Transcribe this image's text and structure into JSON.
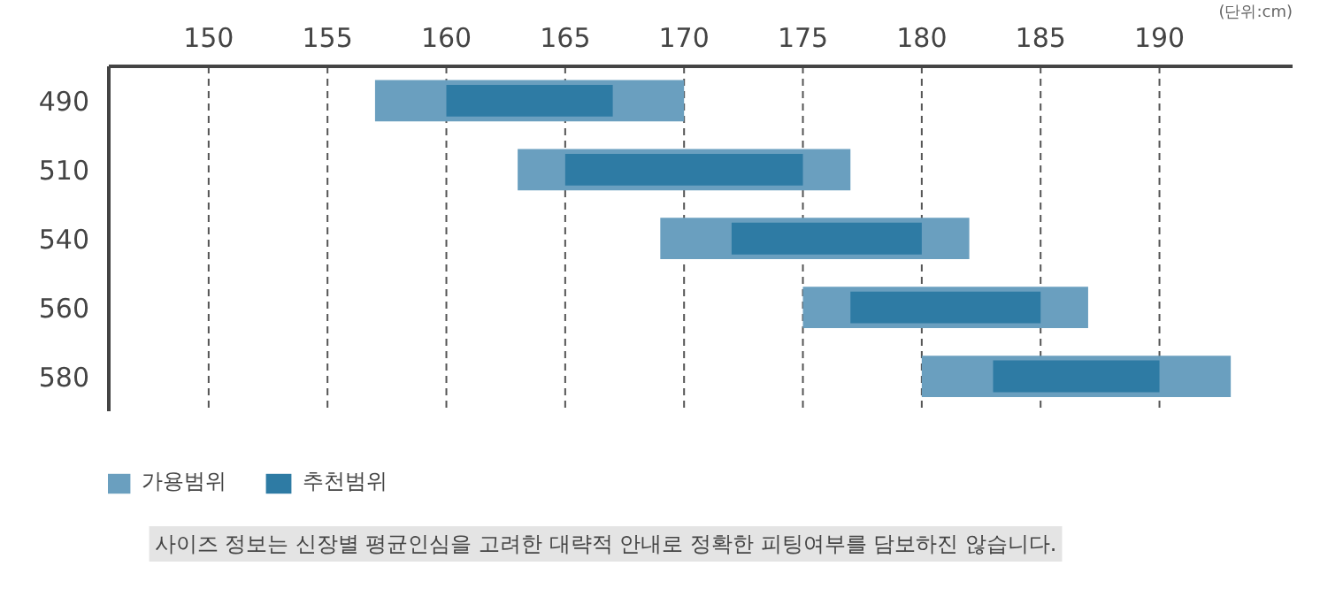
{
  "chart_data": {
    "type": "bar",
    "orientation": "horizontal",
    "xlabel": "(단위:cm)",
    "categories": [
      "490",
      "510",
      "540",
      "560",
      "580"
    ],
    "series": [
      {
        "name": "가용범위",
        "color": "#6a9fbf",
        "base": [
          157,
          163,
          169,
          175,
          180
        ],
        "values": [
          13,
          14,
          13,
          12,
          13
        ]
      },
      {
        "name": "추천범위",
        "color": "#2e7ba4",
        "base": [
          160,
          165,
          172,
          177,
          183
        ],
        "values": [
          7,
          10,
          8,
          8,
          7
        ]
      }
    ],
    "xlim": [
      145.8,
      195.6
    ],
    "xticks": [
      150,
      155,
      160,
      165,
      170,
      175,
      180,
      185,
      190
    ],
    "grid": "x",
    "legend": "bottom left",
    "annotations": [
      "사이즈 정보는 신장별 평균인심을 고려한 대략적 안내로 정확한 피팅여부를 담보하진 않습니다."
    ]
  }
}
